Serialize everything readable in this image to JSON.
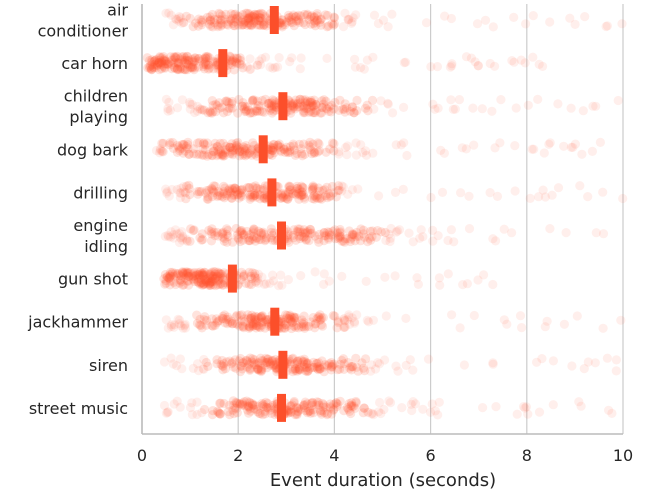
{
  "chart_data": {
    "type": "scatter",
    "orientation": "horizontal-strip",
    "title": "",
    "xlabel": "Event duration (seconds)",
    "ylabel": "",
    "xlim": [
      0,
      10
    ],
    "x_ticks": [
      0,
      2,
      4,
      6,
      8,
      10
    ],
    "grid": "vertical",
    "point_color": "#fc4f2a",
    "median_color": "#fc4f2a",
    "categories": [
      {
        "label_lines": [
          "air",
          "conditioner"
        ],
        "median": 2.75,
        "min": 0.45,
        "max": 10.0,
        "density_center": 2.5,
        "spread": 1.8
      },
      {
        "label_lines": [
          "car horn"
        ],
        "median": 1.68,
        "min": 0.1,
        "max": 8.6,
        "density_center": 1.0,
        "spread": 1.3
      },
      {
        "label_lines": [
          "children",
          "playing"
        ],
        "median": 2.93,
        "min": 0.45,
        "max": 10.0,
        "density_center": 3.0,
        "spread": 2.0
      },
      {
        "label_lines": [
          "dog bark"
        ],
        "median": 2.52,
        "min": 0.25,
        "max": 9.8,
        "density_center": 2.2,
        "spread": 2.0
      },
      {
        "label_lines": [
          "drilling"
        ],
        "median": 2.7,
        "min": 0.45,
        "max": 10.0,
        "density_center": 2.5,
        "spread": 1.8
      },
      {
        "label_lines": [
          "engine",
          "idling"
        ],
        "median": 2.9,
        "min": 0.45,
        "max": 10.0,
        "density_center": 3.0,
        "spread": 2.3
      },
      {
        "label_lines": [
          "gun shot"
        ],
        "median": 1.88,
        "min": 0.45,
        "max": 7.4,
        "density_center": 1.4,
        "spread": 1.1
      },
      {
        "label_lines": [
          "jackhammer"
        ],
        "median": 2.76,
        "min": 0.45,
        "max": 10.0,
        "density_center": 2.6,
        "spread": 1.8
      },
      {
        "label_lines": [
          "siren"
        ],
        "median": 2.93,
        "min": 0.45,
        "max": 10.0,
        "density_center": 3.0,
        "spread": 1.9
      },
      {
        "label_lines": [
          "street music"
        ],
        "median": 2.9,
        "min": 0.45,
        "max": 10.0,
        "density_center": 3.0,
        "spread": 1.9
      }
    ]
  }
}
